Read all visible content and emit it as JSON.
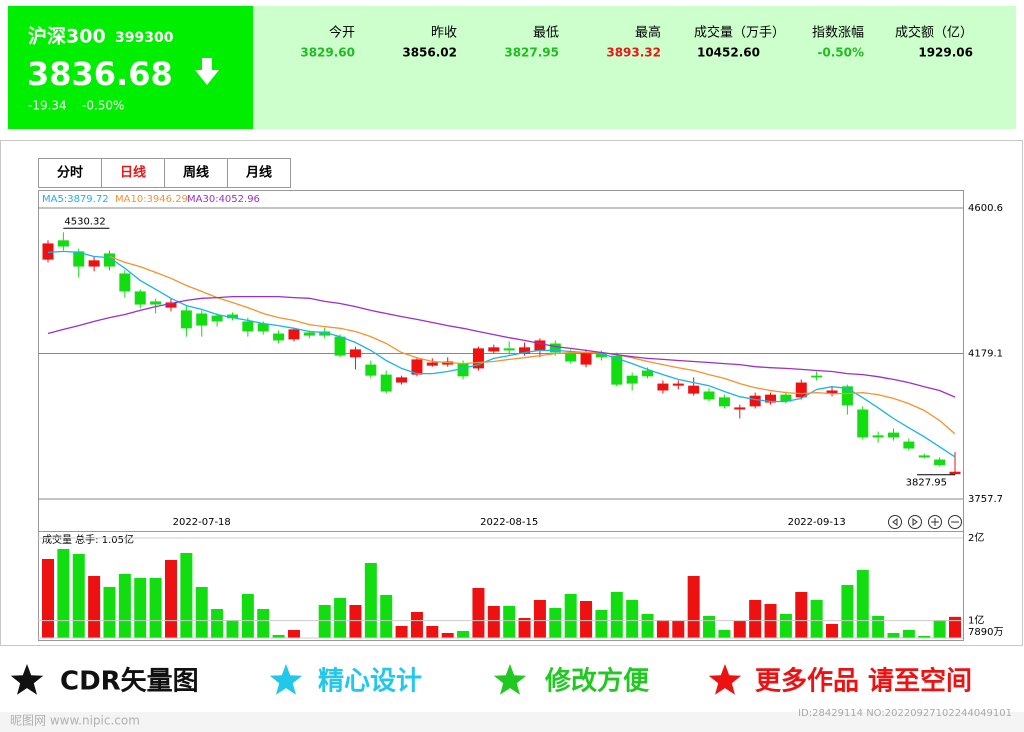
{
  "header": {
    "name": "沪深300",
    "code": "399300",
    "price": "3836.68",
    "change": "-19.34",
    "change_pct": "-0.50%"
  },
  "stats": [
    {
      "label": "今开",
      "value": "3829.60",
      "color": "#22bb22"
    },
    {
      "label": "昨收",
      "value": "3856.02",
      "color": "#000000"
    },
    {
      "label": "最低",
      "value": "3827.95",
      "color": "#22bb22"
    },
    {
      "label": "最高",
      "value": "3893.32",
      "color": "#e81818"
    },
    {
      "label": "成交量（万手）",
      "value": "10452.60",
      "color": "#000000"
    },
    {
      "label": "指数涨幅",
      "value": "-0.50%",
      "color": "#22bb22"
    },
    {
      "label": "成交额（亿）",
      "value": "1929.06",
      "color": "#000000"
    }
  ],
  "tabs": {
    "items": [
      "分时",
      "日线",
      "周线",
      "月线"
    ],
    "active": 1
  },
  "chart_data": {
    "type": "candlestick",
    "categories": [
      null,
      null,
      null,
      null,
      null,
      null,
      null,
      null,
      null,
      null,
      "2022-07-18",
      null,
      null,
      null,
      null,
      null,
      null,
      null,
      null,
      null,
      null,
      null,
      null,
      null,
      null,
      null,
      null,
      null,
      null,
      null,
      "2022-08-15",
      null,
      null,
      null,
      null,
      null,
      null,
      null,
      null,
      null,
      null,
      null,
      null,
      null,
      null,
      null,
      null,
      null,
      null,
      null,
      "2022-09-13",
      null,
      null,
      null,
      null,
      null,
      null,
      null,
      null,
      null
    ],
    "ohlc": [
      [
        4451,
        4507,
        4443,
        4498
      ],
      [
        4507,
        4530.32,
        4478,
        4489
      ],
      [
        4475,
        4483,
        4399,
        4431
      ],
      [
        4431,
        4460,
        4417,
        4449
      ],
      [
        4469,
        4478,
        4420,
        4431
      ],
      [
        4411,
        4420,
        4341,
        4359
      ],
      [
        4359,
        4365,
        4310,
        4321
      ],
      [
        4330,
        4338,
        4295,
        4321
      ],
      [
        4312,
        4338,
        4301,
        4327
      ],
      [
        4304,
        4318,
        4228,
        4252
      ],
      [
        4295,
        4304,
        4228,
        4260
      ],
      [
        4289,
        4295,
        4257,
        4272
      ],
      [
        4292,
        4298,
        4275,
        4281
      ],
      [
        4272,
        4283,
        4228,
        4243
      ],
      [
        4266,
        4272,
        4234,
        4243
      ],
      [
        4237,
        4246,
        4208,
        4217
      ],
      [
        4220,
        4254,
        4214,
        4249
      ],
      [
        4240,
        4246,
        4223,
        4231
      ],
      [
        4243,
        4254,
        4223,
        4231
      ],
      [
        4228,
        4234,
        4168,
        4173
      ],
      [
        4168,
        4199,
        4133,
        4191
      ],
      [
        4147,
        4159,
        4107,
        4115
      ],
      [
        4118,
        4130,
        4063,
        4069
      ],
      [
        4095,
        4115,
        4089,
        4110
      ],
      [
        4118,
        4168,
        4113,
        4162
      ],
      [
        4144,
        4165,
        4141,
        4153
      ],
      [
        4147,
        4168,
        4141,
        4156
      ],
      [
        4150,
        4159,
        4104,
        4113
      ],
      [
        4136,
        4199,
        4130,
        4194
      ],
      [
        4185,
        4205,
        4179,
        4197
      ],
      [
        4194,
        4214,
        4176,
        4188
      ],
      [
        4179,
        4211,
        4173,
        4197
      ],
      [
        4188,
        4223,
        4168,
        4217
      ],
      [
        4208,
        4217,
        4173,
        4182
      ],
      [
        4182,
        4191,
        4150,
        4156
      ],
      [
        4147,
        4191,
        4139,
        4182
      ],
      [
        4179,
        4188,
        4159,
        4168
      ],
      [
        4173,
        4182,
        4084,
        4089
      ],
      [
        4115,
        4124,
        4072,
        4092
      ],
      [
        4130,
        4139,
        4107,
        4113
      ],
      [
        4072,
        4101,
        4063,
        4092
      ],
      [
        4086,
        4101,
        4075,
        4092
      ],
      [
        4063,
        4110,
        4057,
        4086
      ],
      [
        4069,
        4078,
        4040,
        4046
      ],
      [
        4052,
        4060,
        4020,
        4026
      ],
      [
        4017,
        4031,
        3991,
        4023
      ],
      [
        4026,
        4066,
        4020,
        4057
      ],
      [
        4037,
        4066,
        4031,
        4060
      ],
      [
        4060,
        4069,
        4034,
        4040
      ],
      [
        4052,
        4104,
        4046,
        4095
      ],
      [
        4115,
        4127,
        4101,
        4110
      ],
      [
        4063,
        4084,
        4055,
        4072
      ],
      [
        4084,
        4089,
        4002,
        4029
      ],
      [
        4017,
        4026,
        3930,
        3936
      ],
      [
        3942,
        3953,
        3921,
        3936
      ],
      [
        3950,
        3962,
        3927,
        3936
      ],
      [
        3924,
        3933,
        3898,
        3904
      ],
      [
        3884,
        3889,
        3875,
        3878
      ],
      [
        3872,
        3878,
        3852,
        3856
      ],
      [
        3829.6,
        3893.32,
        3827.95,
        3836.68
      ]
    ],
    "up_color": "#ee1111",
    "down_color": "#11dd11",
    "series": [
      {
        "name": "MA5:3879.72",
        "color": "#1ab4e6",
        "values": [
          4472,
          4475,
          4472,
          4460,
          4457,
          4426,
          4391,
          4365,
          4339,
          4318,
          4307,
          4292,
          4283,
          4275,
          4266,
          4260,
          4252,
          4243,
          4240,
          4228,
          4211,
          4188,
          4159,
          4136,
          4121,
          4121,
          4127,
          4136,
          4147,
          4165,
          4173,
          4182,
          4188,
          4188,
          4185,
          4182,
          4179,
          4165,
          4150,
          4133,
          4118,
          4104,
          4095,
          4086,
          4069,
          4054,
          4046,
          4040,
          4040,
          4049,
          4075,
          4083,
          4078,
          4051,
          4022,
          3991,
          3964,
          3938,
          3909,
          3879.72
        ]
      },
      {
        "name": "MA10:3946.29",
        "color": "#f7922e",
        "values": [
          null,
          null,
          null,
          null,
          4460,
          4443,
          4431,
          4414,
          4397,
          4376,
          4359,
          4341,
          4327,
          4312,
          4295,
          4283,
          4275,
          4263,
          4257,
          4252,
          4243,
          4228,
          4208,
          4182,
          4167,
          4156,
          4153,
          4150,
          4153,
          4156,
          4162,
          4167,
          4173,
          4179,
          4182,
          4182,
          4182,
          4176,
          4167,
          4156,
          4147,
          4138,
          4130,
          4118,
          4107,
          4092,
          4080,
          4072,
          4066,
          4063,
          4066,
          4063,
          4063,
          4066,
          4060,
          4049,
          4034,
          4014,
          3985,
          3946.29
        ]
      },
      {
        "name": "MA30:4052.96",
        "color": "#9b30c8",
        "values": [
          4237,
          4249,
          4260,
          4272,
          4283,
          4292,
          4304,
          4315,
          4324,
          4333,
          4339,
          4341,
          4344,
          4344,
          4344,
          4344,
          4341,
          4339,
          4330,
          4324,
          4315,
          4304,
          4295,
          4286,
          4278,
          4269,
          4260,
          4252,
          4243,
          4234,
          4225,
          4217,
          4208,
          4199,
          4194,
          4188,
          4182,
          4176,
          4170,
          4165,
          4162,
          4159,
          4156,
          4153,
          4150,
          4147,
          4141,
          4138,
          4136,
          4133,
          4130,
          4127,
          4121,
          4118,
          4112,
          4104,
          4095,
          4083,
          4072,
          4052.96
        ]
      }
    ],
    "ylim": [
      3757.7,
      4600.6
    ],
    "yticks": [
      4600.6,
      4179.1,
      3757.7
    ],
    "grid": true,
    "volume": {
      "title": "成交量 总手: 1.05亿",
      "values": [
        17457,
        18668,
        18062,
        15398,
        14066,
        15640,
        15156,
        15156,
        17336,
        18184,
        14066,
        11402,
        10070,
        13218,
        11402,
        8253,
        8859,
        7890,
        11886,
        12734,
        11886,
        16973,
        13097,
        9343,
        11039,
        9343,
        8496,
        8738,
        13945,
        11765,
        11765,
        10312,
        12492,
        11523,
        13218,
        12371,
        11281,
        13461,
        12492,
        10796,
        10070,
        9949,
        15398,
        10554,
        8859,
        9949,
        12492,
        12007,
        10796,
        13461,
        12492,
        9585,
        14308,
        16125,
        10554,
        8496,
        8859,
        8132,
        10070,
        10452.6
      ],
      "ylim": [
        7890,
        20000
      ],
      "yticks": [
        {
          "value": 20000,
          "label": "2亿"
        },
        {
          "value": 10000,
          "label": "1亿"
        },
        {
          "value": 7890,
          "label": "7890万"
        }
      ]
    }
  },
  "footer": [
    "CDR矢量图",
    "精心设计",
    "修改方便",
    "更多作品 请至空间"
  ],
  "watermark": {
    "site": "昵图网 www.nipic.com",
    "id": "ID:28429114 NO:20220927102244049101"
  }
}
